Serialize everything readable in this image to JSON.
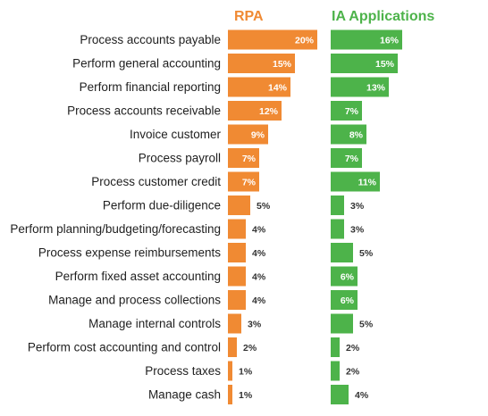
{
  "chart_data": {
    "type": "bar",
    "orientation": "horizontal",
    "layout": "side-by-side panels",
    "categories": [
      "Process accounts payable",
      "Perform general accounting",
      "Perform financial reporting",
      "Process accounts receivable",
      "Invoice customer",
      "Process payroll",
      "Process customer credit",
      "Perform due-diligence",
      "Perform planning/budgeting/forecasting",
      "Process expense reimbursements",
      "Perform fixed asset accounting",
      "Manage and process collections",
      "Manage internal controls",
      "Perform cost accounting and control",
      "Process taxes",
      "Manage cash"
    ],
    "series": [
      {
        "name": "RPA",
        "color": "#F08A33",
        "values": [
          20,
          15,
          14,
          12,
          9,
          7,
          7,
          5,
          4,
          4,
          4,
          4,
          3,
          2,
          1,
          1
        ],
        "labels": [
          "20%",
          "15%",
          "14%",
          "12%",
          "9%",
          "7%",
          "7%",
          "5%",
          "4%",
          "4%",
          "4%",
          "4%",
          "3%",
          "2%",
          "1%",
          "1%"
        ]
      },
      {
        "name": "IA Applications",
        "color": "#4DB34A",
        "values": [
          16,
          15,
          13,
          7,
          8,
          7,
          11,
          3,
          3,
          5,
          6,
          6,
          5,
          2,
          2,
          4
        ],
        "labels": [
          "16%",
          "15%",
          "13%",
          "7%",
          "8%",
          "7%",
          "11%",
          "3%",
          "3%",
          "5%",
          "6%",
          "6%",
          "5%",
          "2%",
          "2%",
          "4%"
        ]
      }
    ],
    "unit": "%",
    "grid": false,
    "legend": "series names shown as panel headers at top"
  }
}
